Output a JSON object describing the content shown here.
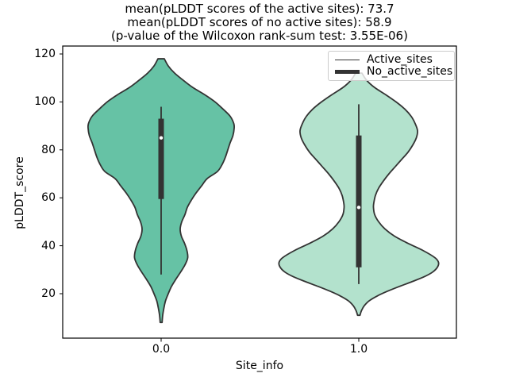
{
  "chart_data": {
    "type": "violin",
    "title_lines": [
      "mean(pLDDT scores of the active sites): 73.7",
      "mean(pLDDT scores of no active sites): 58.9",
      "(p-value of the Wilcoxon rank-sum test: 3.55E-06)"
    ],
    "stats_shown": {
      "mean_active_sites": 73.7,
      "mean_no_active_sites": 58.9,
      "wilcoxon_rank_sum_p_value": "3.55E-06"
    },
    "xlabel": "Site_info",
    "ylabel": "pLDDT_score",
    "x_tick_labels": [
      "0.0",
      "1.0"
    ],
    "y_tick_values": [
      20,
      40,
      60,
      80,
      100,
      120
    ],
    "ylim": [
      1.5,
      123
    ],
    "grid": false,
    "legend": {
      "position": "upper right",
      "entries": [
        {
          "label": "Active_sites",
          "line_style": "thin"
        },
        {
          "label": "No_active_sites",
          "line_style": "thick"
        }
      ]
    },
    "series": [
      {
        "name": "Active_sites",
        "x_tick": "0.0",
        "fill_color": "#66c2a5",
        "edge_color": "#333333",
        "box": {
          "whisker_low": 28,
          "q1": 59.5,
          "median": 85,
          "q3": 93,
          "whisker_high": 98
        },
        "density_profile": [
          [
            118,
            4
          ],
          [
            115,
            9
          ],
          [
            112,
            17
          ],
          [
            109,
            28
          ],
          [
            106,
            40
          ],
          [
            103,
            55
          ],
          [
            100,
            68
          ],
          [
            97,
            78
          ],
          [
            94,
            87
          ],
          [
            91,
            91.5
          ],
          [
            89,
            92
          ],
          [
            86,
            90.5
          ],
          [
            83,
            87
          ],
          [
            80,
            84
          ],
          [
            77,
            81
          ],
          [
            74,
            77
          ],
          [
            71,
            71
          ],
          [
            68,
            58
          ],
          [
            65,
            51
          ],
          [
            62,
            44
          ],
          [
            59,
            38
          ],
          [
            56,
            33
          ],
          [
            53,
            30
          ],
          [
            50,
            26
          ],
          [
            47,
            24
          ],
          [
            44,
            25.5
          ],
          [
            41,
            29.5
          ],
          [
            38,
            32.5
          ],
          [
            35,
            33.5
          ],
          [
            32,
            30
          ],
          [
            29,
            24.5
          ],
          [
            26,
            18.5
          ],
          [
            23,
            13
          ],
          [
            20,
            9
          ],
          [
            17,
            5.5
          ],
          [
            14,
            3.5
          ],
          [
            11,
            2
          ],
          [
            8,
            1.2
          ]
        ]
      },
      {
        "name": "No_active_sites",
        "x_tick": "1.0",
        "fill_color": "#b3e2cd",
        "edge_color": "#333333",
        "box": {
          "whisker_low": 24,
          "q1": 31,
          "median": 56,
          "q3": 86,
          "whisker_high": 99
        },
        "density_profile": [
          [
            112,
            4
          ],
          [
            109,
            10
          ],
          [
            106,
            20
          ],
          [
            103,
            34
          ],
          [
            100,
            47
          ],
          [
            97,
            58
          ],
          [
            94,
            66
          ],
          [
            91,
            71
          ],
          [
            88,
            74
          ],
          [
            85,
            72.5
          ],
          [
            82,
            68
          ],
          [
            79,
            62
          ],
          [
            76,
            54
          ],
          [
            73,
            46
          ],
          [
            70,
            38
          ],
          [
            67,
            31
          ],
          [
            64,
            25
          ],
          [
            61,
            21
          ],
          [
            58,
            19
          ],
          [
            56,
            18.5
          ],
          [
            53,
            20
          ],
          [
            50,
            25
          ],
          [
            47,
            33
          ],
          [
            44,
            45
          ],
          [
            41,
            62
          ],
          [
            38,
            81
          ],
          [
            35,
            96
          ],
          [
            33,
            100.5
          ],
          [
            31,
            99
          ],
          [
            29,
            93
          ],
          [
            27,
            82
          ],
          [
            25,
            67
          ],
          [
            23,
            51
          ],
          [
            21,
            36
          ],
          [
            19,
            23
          ],
          [
            17,
            13
          ],
          [
            15,
            7
          ],
          [
            13,
            3.5
          ],
          [
            11,
            1.5
          ]
        ]
      }
    ],
    "colors": {
      "violin_active": "#66c2a5",
      "violin_no_active": "#b3e2cd",
      "edge_and_box": "#333333",
      "median_dot": "#ffffff",
      "axes_frame": "#000000",
      "legend_border": "#cccccc"
    }
  }
}
